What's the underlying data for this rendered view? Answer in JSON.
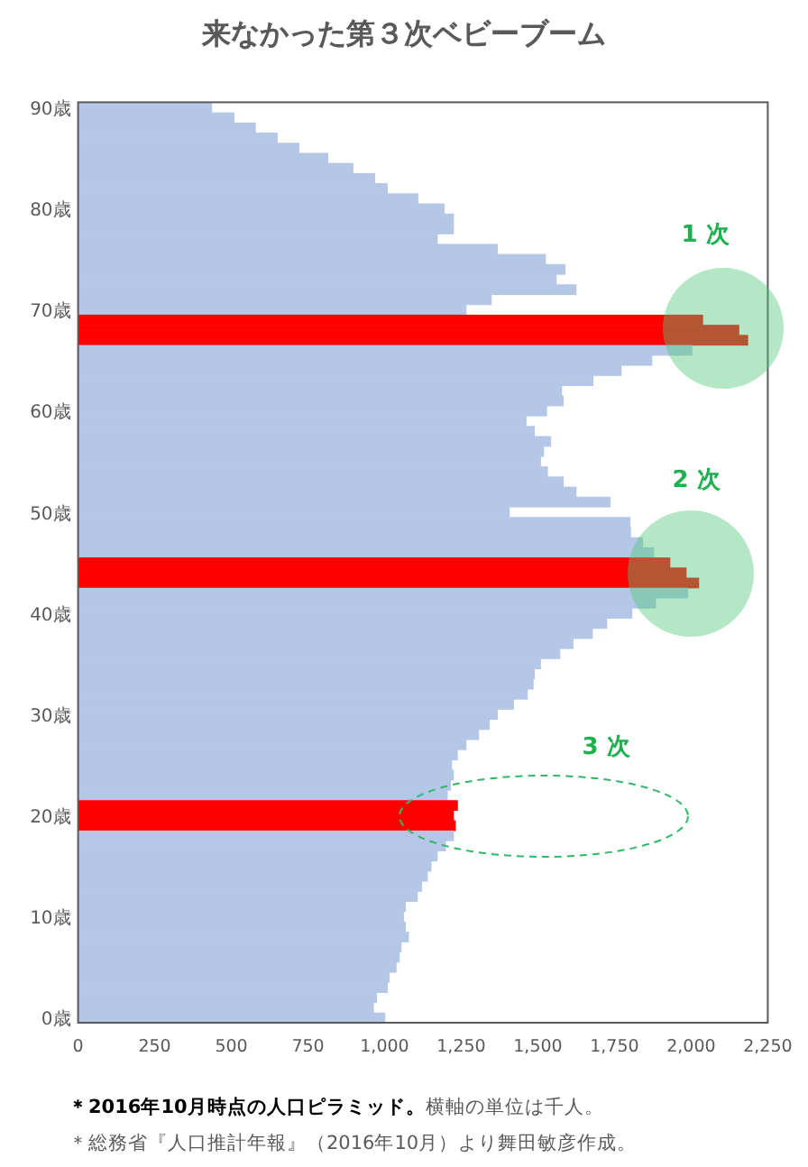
{
  "chart_data": {
    "type": "bar",
    "orientation": "horizontal",
    "title": "来なかった第３次ベビーブーム",
    "categories": [
      "90歳",
      null,
      null,
      null,
      null,
      null,
      null,
      null,
      null,
      null,
      "80歳",
      null,
      null,
      null,
      null,
      null,
      null,
      null,
      null,
      null,
      "70歳",
      null,
      null,
      null,
      null,
      null,
      null,
      null,
      null,
      null,
      "60歳",
      null,
      null,
      null,
      null,
      null,
      null,
      null,
      null,
      null,
      "50歳",
      null,
      null,
      null,
      null,
      null,
      null,
      null,
      null,
      null,
      "40歳",
      null,
      null,
      null,
      null,
      null,
      null,
      null,
      null,
      null,
      "30歳",
      null,
      null,
      null,
      null,
      null,
      null,
      null,
      null,
      null,
      "20歳",
      null,
      null,
      null,
      null,
      null,
      null,
      null,
      null,
      null,
      "10歳",
      null,
      null,
      null,
      null,
      null,
      null,
      null,
      null,
      null,
      "0歳"
    ],
    "values": [
      437,
      510,
      580,
      651,
      722,
      816,
      898,
      969,
      1010,
      1110,
      1196,
      1226,
      1226,
      1173,
      1369,
      1526,
      1590,
      1561,
      1626,
      1349,
      1267,
      2039,
      2157,
      2186,
      2004,
      1873,
      1773,
      1681,
      1579,
      1584,
      1530,
      1463,
      1490,
      1543,
      1520,
      1510,
      1533,
      1584,
      1626,
      1737,
      1408,
      1802,
      1804,
      1843,
      1879,
      1932,
      1985,
      2026,
      1990,
      1885,
      1808,
      1726,
      1679,
      1616,
      1573,
      1510,
      1490,
      1486,
      1467,
      1422,
      1369,
      1343,
      1308,
      1267,
      1239,
      1220,
      1226,
      1216,
      1206,
      1239,
      1226,
      1232,
      1226,
      1200,
      1173,
      1153,
      1141,
      1122,
      1108,
      1069,
      1063,
      1069,
      1079,
      1055,
      1049,
      1039,
      1016,
      1010,
      975,
      965,
      1002
    ],
    "colors": [
      "#b4c7e7",
      "#b4c7e7",
      "#b4c7e7",
      "#b4c7e7",
      "#b4c7e7",
      "#b4c7e7",
      "#b4c7e7",
      "#b4c7e7",
      "#b4c7e7",
      "#b4c7e7",
      "#b4c7e7",
      "#b4c7e7",
      "#b4c7e7",
      "#b4c7e7",
      "#b4c7e7",
      "#b4c7e7",
      "#b4c7e7",
      "#b4c7e7",
      "#b4c7e7",
      "#b4c7e7",
      "#b4c7e7",
      "#ff0000",
      "#ff0000",
      "#ff0000",
      "#b4c7e7",
      "#b4c7e7",
      "#b4c7e7",
      "#b4c7e7",
      "#b4c7e7",
      "#b4c7e7",
      "#b4c7e7",
      "#b4c7e7",
      "#b4c7e7",
      "#b4c7e7",
      "#b4c7e7",
      "#b4c7e7",
      "#b4c7e7",
      "#b4c7e7",
      "#b4c7e7",
      "#b4c7e7",
      "#b4c7e7",
      "#b4c7e7",
      "#b4c7e7",
      "#b4c7e7",
      "#b4c7e7",
      "#ff0000",
      "#ff0000",
      "#ff0000",
      "#b4c7e7",
      "#b4c7e7",
      "#b4c7e7",
      "#b4c7e7",
      "#b4c7e7",
      "#b4c7e7",
      "#b4c7e7",
      "#b4c7e7",
      "#b4c7e7",
      "#b4c7e7",
      "#b4c7e7",
      "#b4c7e7",
      "#b4c7e7",
      "#b4c7e7",
      "#b4c7e7",
      "#b4c7e7",
      "#b4c7e7",
      "#b4c7e7",
      "#b4c7e7",
      "#b4c7e7",
      "#b4c7e7",
      "#ff0000",
      "#ff0000",
      "#ff0000",
      "#b4c7e7",
      "#b4c7e7",
      "#b4c7e7",
      "#b4c7e7",
      "#b4c7e7",
      "#b4c7e7",
      "#b4c7e7",
      "#b4c7e7",
      "#b4c7e7",
      "#b4c7e7",
      "#b4c7e7",
      "#b4c7e7",
      "#b4c7e7",
      "#b4c7e7",
      "#b4c7e7",
      "#b4c7e7",
      "#b4c7e7",
      "#b4c7e7",
      "#b4c7e7"
    ],
    "xlim": [
      0,
      2250
    ],
    "xticks": [
      0,
      250,
      500,
      750,
      {
        "value": 1000,
        "label": "1,000"
      },
      {
        "value": 1250,
        "label": "1,250"
      },
      {
        "value": 1500,
        "label": "1,500"
      },
      {
        "value": 1750,
        "label": "1,750"
      },
      {
        "value": 2000,
        "label": "2,000"
      },
      {
        "value": 2250,
        "label": "2,250"
      }
    ],
    "grid": false,
    "annotations": [
      "1 次",
      "2 次",
      "3 次",
      "＊2016年10月時点の人口ピラミッド。",
      "横軸の単位は千人。",
      "＊総務省『人口推計年報』（2016年10月）より舞田敏彦作成。"
    ]
  }
}
